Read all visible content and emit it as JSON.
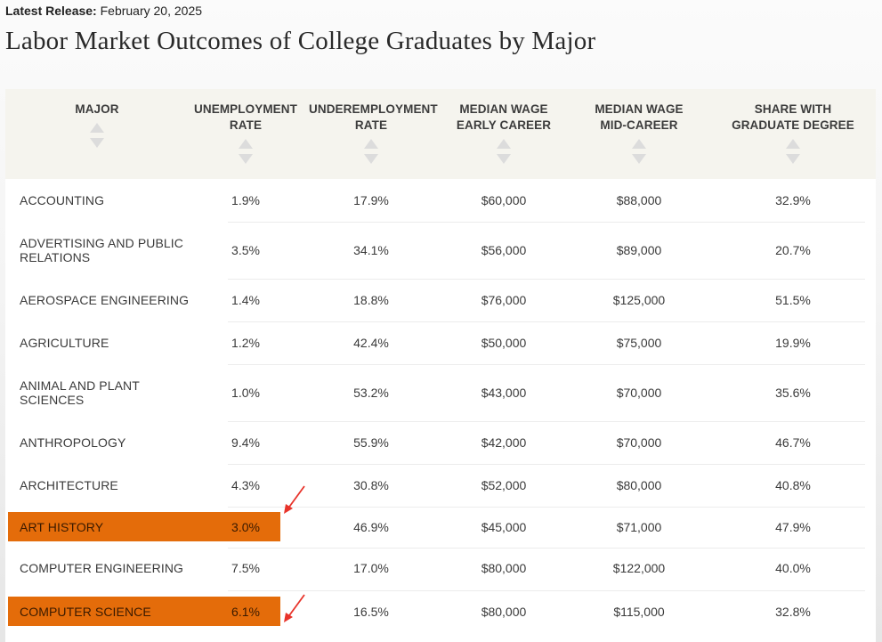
{
  "release": {
    "label": "Latest Release:",
    "date": "February 20, 2025"
  },
  "title": "Labor Market Outcomes of College Graduates by Major",
  "columns": [
    {
      "label": "MAJOR"
    },
    {
      "label": "UNEMPLOYMENT RATE"
    },
    {
      "label": "UNDEREMPLOYMENT RATE"
    },
    {
      "label": "MEDIAN WAGE EARLY CAREER"
    },
    {
      "label": "MEDIAN WAGE MID-CAREER"
    },
    {
      "label": "SHARE WITH GRADUATE DEGREE"
    }
  ],
  "rows": [
    {
      "major": "ACCOUNTING",
      "unemployment": "1.9%",
      "underemployment": "17.9%",
      "early": "$60,000",
      "mid": "$88,000",
      "grad": "32.9%",
      "highlighted": false
    },
    {
      "major": "ADVERTISING AND PUBLIC RELATIONS",
      "unemployment": "3.5%",
      "underemployment": "34.1%",
      "early": "$56,000",
      "mid": "$89,000",
      "grad": "20.7%",
      "highlighted": false
    },
    {
      "major": "AEROSPACE ENGINEERING",
      "unemployment": "1.4%",
      "underemployment": "18.8%",
      "early": "$76,000",
      "mid": "$125,000",
      "grad": "51.5%",
      "highlighted": false
    },
    {
      "major": "AGRICULTURE",
      "unemployment": "1.2%",
      "underemployment": "42.4%",
      "early": "$50,000",
      "mid": "$75,000",
      "grad": "19.9%",
      "highlighted": false
    },
    {
      "major": "ANIMAL AND PLANT SCIENCES",
      "unemployment": "1.0%",
      "underemployment": "53.2%",
      "early": "$43,000",
      "mid": "$70,000",
      "grad": "35.6%",
      "highlighted": false
    },
    {
      "major": "ANTHROPOLOGY",
      "unemployment": "9.4%",
      "underemployment": "55.9%",
      "early": "$42,000",
      "mid": "$70,000",
      "grad": "46.7%",
      "highlighted": false
    },
    {
      "major": "ARCHITECTURE",
      "unemployment": "4.3%",
      "underemployment": "30.8%",
      "early": "$52,000",
      "mid": "$80,000",
      "grad": "40.8%",
      "highlighted": false
    },
    {
      "major": "ART HISTORY",
      "unemployment": "3.0%",
      "underemployment": "46.9%",
      "early": "$45,000",
      "mid": "$71,000",
      "grad": "47.9%",
      "highlighted": true
    },
    {
      "major": "COMPUTER ENGINEERING",
      "unemployment": "7.5%",
      "underemployment": "17.0%",
      "early": "$80,000",
      "mid": "$122,000",
      "grad": "40.0%",
      "highlighted": false
    },
    {
      "major": "COMPUTER SCIENCE",
      "unemployment": "6.1%",
      "underemployment": "16.5%",
      "early": "$80,000",
      "mid": "$115,000",
      "grad": "32.8%",
      "highlighted": true
    }
  ],
  "colors": {
    "highlight": "#e46c0a",
    "annotation_arrow": "#e8332a",
    "header_bg": "#f5f4ee"
  },
  "icons": {
    "sort": "sort-arrows-icon",
    "annotation": "red-arrow-icon"
  }
}
